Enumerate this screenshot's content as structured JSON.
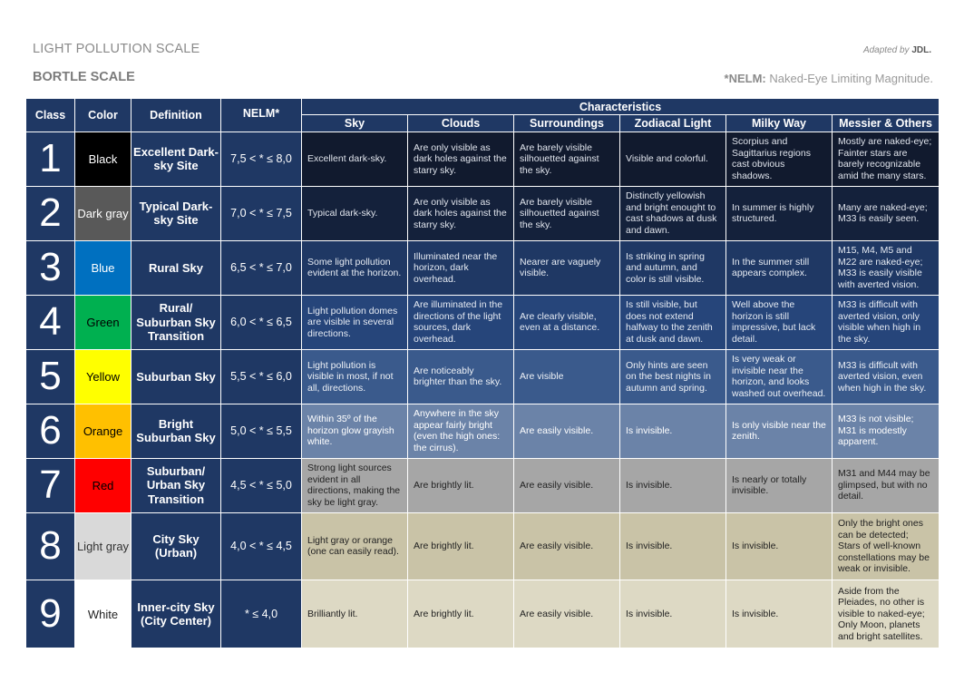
{
  "header": {
    "title": "LIGHT POLLUTION SCALE",
    "subtitle": "BORTLE SCALE",
    "credit_prefix": "Adapted by ",
    "credit_name": "JDL.",
    "note_key": "*NELM:",
    "note_text": " Naked-Eye Limiting Magnitude."
  },
  "columns": {
    "class": "Class",
    "color": "Color",
    "definition": "Definition",
    "nelm": "NELM*",
    "characteristics": "Characteristics",
    "sky": "Sky",
    "clouds": "Clouds",
    "surroundings": "Surroundings",
    "zodiacal": "Zodiacal Light",
    "milkyway": "Milky Way",
    "messier": "Messier & Others"
  },
  "colors": {
    "header_bg": "#1f3864",
    "black": "#000000",
    "dark_gray": "#595959",
    "blue": "#0070c0",
    "green": "#00b050",
    "yellow": "#ffff00",
    "orange": "#ffc000",
    "red": "#ff0000",
    "light_gray": "#d9d9d9",
    "white": "#ffffff"
  },
  "rows": [
    {
      "num": "1",
      "color": "Black",
      "definition": "Excellent Dark-sky Site",
      "nelm": "7,5 < * ≤ 8,0",
      "sky": "Excellent dark-sky.",
      "clouds": "Are only visible as dark holes against the starry sky.",
      "surroundings": "Are barely visible silhouetted against the sky.",
      "zodiacal": "Visible and colorful.",
      "milkyway": "Scorpius and Sagittarius regions cast obvious shadows.",
      "messier": "Mostly are naked-eye; Fainter stars are barely recognizable amid the many stars."
    },
    {
      "num": "2",
      "color": "Dark gray",
      "definition": "Typical Dark-sky Site",
      "nelm": "7,0 < * ≤ 7,5",
      "sky": "Typical dark-sky.",
      "clouds": "Are only visible as dark holes against the starry sky.",
      "surroundings": "Are barely visible silhouetted against the sky.",
      "zodiacal": "Distinctly yellowish and bright enought to cast shadows at dusk and dawn.",
      "milkyway": "In summer is highly structured.",
      "messier": "Many are naked-eye; M33 is easily seen."
    },
    {
      "num": "3",
      "color": "Blue",
      "definition": "Rural Sky",
      "nelm": "6,5 < * ≤ 7,0",
      "sky": "Some light pollution evident at the horizon.",
      "clouds": "Illuminated near the horizon, dark overhead.",
      "surroundings": "Nearer are vaguely visible.",
      "zodiacal": "Is striking in spring and autumn, and color is still visible.",
      "milkyway": "In the summer still appears complex.",
      "messier": "M15, M4, M5 and M22 are naked-eye; M33 is easily visible with averted vision."
    },
    {
      "num": "4",
      "color": "Green",
      "definition": "Rural/ Suburban Sky Transition",
      "nelm": "6,0 < * ≤ 6,5",
      "sky": "Light pollution domes are visible in several directions.",
      "clouds": "Are illuminated in the directions of the light sources, dark overhead.",
      "surroundings": "Are clearly visible, even at a distance.",
      "zodiacal": "Is still visible, but does not extend halfway to the zenith at dusk and dawn.",
      "milkyway": "Well above the horizon is still impressive, but lack detail.",
      "messier": "M33 is difficult with averted vision, only visible when high in the sky."
    },
    {
      "num": "5",
      "color": "Yellow",
      "definition": "Suburban Sky",
      "nelm": "5,5 < * ≤ 6,0",
      "sky": "Light pollution is visible in most, if not all, directions.",
      "clouds": "Are noticeably brighter than the sky.",
      "surroundings": "Are visible",
      "zodiacal": "Only hints are seen on the best nights in autumn and spring.",
      "milkyway": "Is very weak or invisible near the horizon, and looks washed out overhead.",
      "messier": "M33 is difficult with averted vision, even when high in the sky."
    },
    {
      "num": "6",
      "color": "Orange",
      "definition": "Bright Suburban Sky",
      "nelm": "5,0 < * ≤ 5,5",
      "sky": "Within 35º of the horizon glow grayish white.",
      "clouds": "Anywhere in the sky appear fairly bright (even the high ones: the cirrus).",
      "surroundings": "Are easily visible.",
      "zodiacal": "Is invisible.",
      "milkyway": "Is only visible near the zenith.",
      "messier": "M33 is not visible; M31 is modestly apparent."
    },
    {
      "num": "7",
      "color": "Red",
      "definition": "Suburban/ Urban Sky Transition",
      "nelm": "4,5 < * ≤ 5,0",
      "sky": "Strong light sources evident in all directions, making the sky be light gray.",
      "clouds": "Are brightly lit.",
      "surroundings": "Are easily visible.",
      "zodiacal": "Is invisible.",
      "milkyway": "Is nearly or totally invisible.",
      "messier": "M31 and M44 may be glimpsed, but with no detail."
    },
    {
      "num": "8",
      "color": "Light gray",
      "definition": "City Sky (Urban)",
      "nelm": "4,0 < * ≤ 4,5",
      "sky": "Light gray or orange (one can easily read).",
      "clouds": "Are brightly lit.",
      "surroundings": "Are easily visible.",
      "zodiacal": "Is invisible.",
      "milkyway": "Is invisible.",
      "messier": "Only the bright ones can be detected; Stars of well-known constellations may be weak or invisible."
    },
    {
      "num": "9",
      "color": "White",
      "definition": "Inner-city Sky (City Center)",
      "nelm": "* ≤ 4,0",
      "sky": "Brilliantly lit.",
      "clouds": "Are brightly lit.",
      "surroundings": "Are easily visible.",
      "zodiacal": "Is invisible.",
      "milkyway": "Is invisible.",
      "messier": "Aside from the Pleiades, no other is visible to naked-eye; Only Moon, planets and bright satellites."
    }
  ]
}
